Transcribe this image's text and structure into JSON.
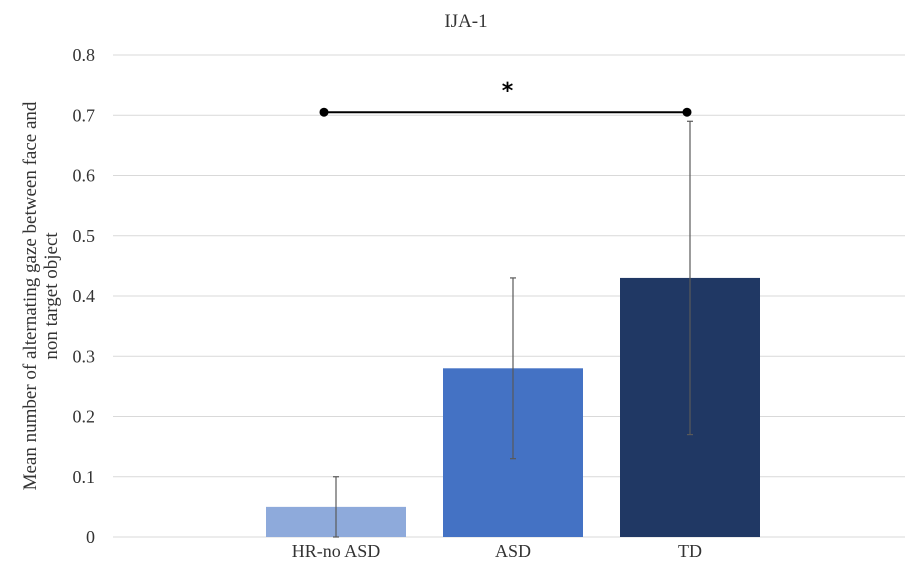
{
  "chart_data": {
    "type": "bar",
    "title": "IJA-1",
    "xlabel": "",
    "ylabel": "Mean number of alternating gaze between face and non target object",
    "ylabel_lines": [
      "Mean number of alternating gaze between face and",
      "non target object"
    ],
    "categories": [
      "HR-no ASD",
      "ASD",
      "TD"
    ],
    "values": [
      0.05,
      0.28,
      0.43
    ],
    "error_low": [
      0.0,
      0.13,
      0.17
    ],
    "error_high": [
      0.1,
      0.43,
      0.69
    ],
    "colors": [
      "#8eaadb",
      "#4472c4",
      "#203864"
    ],
    "ylim": [
      0,
      0.8
    ],
    "yticks": [
      "0",
      "0.1",
      "0.2",
      "0.3",
      "0.4",
      "0.5",
      "0.6",
      "0.7",
      "0.8"
    ],
    "ytick_values": [
      0,
      0.1,
      0.2,
      0.3,
      0.4,
      0.5,
      0.6,
      0.7,
      0.8
    ],
    "grid": true,
    "legend": "none",
    "annotations": [
      {
        "type": "significance",
        "from": "HR-no ASD",
        "to": "TD",
        "y": 0.705,
        "label": "*"
      }
    ]
  }
}
